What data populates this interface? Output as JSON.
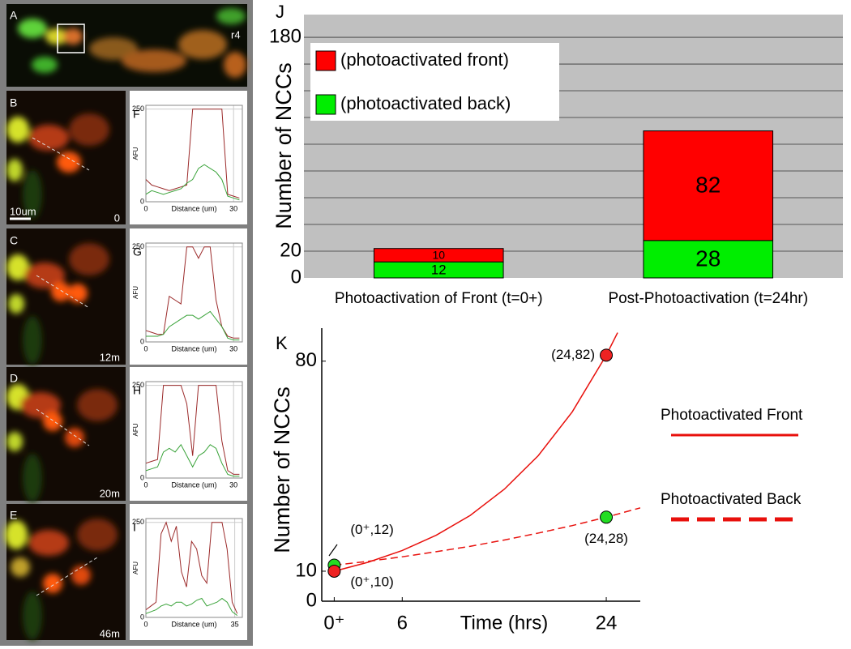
{
  "image_panels": [
    {
      "label": "A",
      "annotations": [
        "r4"
      ]
    },
    {
      "label": "B",
      "annotations": [
        "10um",
        "0"
      ]
    },
    {
      "label": "C",
      "annotations": [
        "12m"
      ]
    },
    {
      "label": "D",
      "annotations": [
        "20m"
      ]
    },
    {
      "label": "E",
      "annotations": [
        "46m"
      ]
    }
  ],
  "chart_data": [
    {
      "type": "line",
      "label": "F",
      "x": [
        0,
        2,
        4,
        6,
        8,
        10,
        12,
        14,
        16,
        18,
        20,
        22,
        24,
        26,
        28,
        30,
        32
      ],
      "series": [
        {
          "color": "#9b2a2a",
          "values": [
            60,
            45,
            40,
            35,
            30,
            35,
            40,
            45,
            250,
            250,
            250,
            250,
            250,
            250,
            20,
            15,
            10
          ]
        },
        {
          "color": "#3aa33a",
          "values": [
            20,
            30,
            25,
            20,
            25,
            30,
            35,
            50,
            60,
            90,
            100,
            90,
            80,
            60,
            15,
            10,
            5
          ]
        }
      ],
      "xlim": [
        0,
        33
      ],
      "xticks": [
        0,
        30
      ],
      "ylim": [
        0,
        260
      ],
      "yticks": [
        0,
        250
      ],
      "xlabel": "Distance (um)",
      "ylabel": "AFU",
      "grid": true
    },
    {
      "type": "line",
      "label": "G",
      "x": [
        0,
        2,
        4,
        6,
        8,
        10,
        12,
        14,
        16,
        18,
        20,
        22,
        24,
        26,
        28,
        30,
        32
      ],
      "series": [
        {
          "color": "#9b2a2a",
          "values": [
            30,
            25,
            20,
            20,
            120,
            110,
            100,
            250,
            250,
            220,
            250,
            250,
            110,
            40,
            15,
            10,
            10
          ]
        },
        {
          "color": "#3aa33a",
          "values": [
            15,
            15,
            15,
            20,
            40,
            50,
            60,
            70,
            70,
            60,
            70,
            80,
            60,
            40,
            10,
            5,
            5
          ]
        }
      ],
      "xlim": [
        0,
        33
      ],
      "xticks": [
        0,
        30
      ],
      "ylim": [
        0,
        260
      ],
      "yticks": [
        0,
        250
      ],
      "xlabel": "Distance (um)",
      "ylabel": "AFU",
      "grid": true
    },
    {
      "type": "line",
      "label": "H",
      "x": [
        0,
        2,
        4,
        6,
        8,
        10,
        12,
        14,
        16,
        18,
        20,
        22,
        24,
        26,
        28,
        30,
        32
      ],
      "series": [
        {
          "color": "#9b2a2a",
          "values": [
            40,
            45,
            50,
            250,
            250,
            250,
            250,
            200,
            60,
            250,
            250,
            250,
            250,
            100,
            20,
            10,
            10
          ]
        },
        {
          "color": "#3aa33a",
          "values": [
            20,
            25,
            30,
            70,
            80,
            70,
            90,
            60,
            30,
            60,
            70,
            90,
            80,
            40,
            10,
            5,
            5
          ]
        }
      ],
      "xlim": [
        0,
        33
      ],
      "xticks": [
        0,
        30
      ],
      "ylim": [
        0,
        260
      ],
      "yticks": [
        0,
        250
      ],
      "xlabel": "Distance (um)",
      "ylabel": "AFU",
      "grid": true
    },
    {
      "type": "line",
      "label": "I",
      "x": [
        0,
        2,
        4,
        6,
        8,
        10,
        12,
        14,
        16,
        18,
        20,
        22,
        24,
        26,
        28,
        30,
        32,
        34,
        36
      ],
      "series": [
        {
          "color": "#9b2a2a",
          "values": [
            20,
            30,
            40,
            220,
            250,
            200,
            240,
            120,
            80,
            200,
            180,
            110,
            90,
            250,
            250,
            250,
            180,
            40,
            10
          ]
        },
        {
          "color": "#3aa33a",
          "values": [
            10,
            15,
            20,
            30,
            35,
            30,
            40,
            40,
            30,
            35,
            45,
            50,
            30,
            35,
            40,
            50,
            40,
            15,
            5
          ]
        }
      ],
      "xlim": [
        0,
        38
      ],
      "xticks": [
        0,
        35
      ],
      "ylim": [
        0,
        260
      ],
      "yticks": [
        0,
        250
      ],
      "xlabel": "Distance (um)",
      "ylabel": "AFU",
      "grid": true
    },
    {
      "type": "stacked_bar",
      "label": "J",
      "categories": [
        "Photoactivation of Front (t=0+)",
        "Post-Photoactivation (t=24hr)"
      ],
      "series": [
        {
          "name": "(photoactivated back)",
          "color": "#00ee00",
          "values": [
            12,
            28
          ]
        },
        {
          "name": "(photoactivated front)",
          "color": "#ff0000",
          "values": [
            10,
            82
          ]
        }
      ],
      "ylim": [
        0,
        197
      ],
      "yticks": [
        0,
        20,
        180
      ],
      "grid_lines": [
        20,
        40,
        60,
        80,
        100,
        120,
        140,
        160,
        180
      ],
      "ylabel": "Number of NCCs",
      "legend": "upper left"
    },
    {
      "type": "curve",
      "label": "K",
      "series": [
        {
          "name": "Photoactivated Front",
          "color": "#e8100c",
          "dash": false,
          "x": [
            0,
            3,
            6,
            9,
            12,
            15,
            18,
            21,
            24,
            25
          ],
          "values": [
            10,
            13.0,
            16.9,
            22.0,
            28.6,
            37.3,
            48.5,
            63.1,
            82,
            89.5
          ]
        },
        {
          "name": "Photoactivated Back",
          "color": "#e8100c",
          "dash": true,
          "x": [
            0,
            3,
            6,
            9,
            12,
            15,
            18,
            21,
            24,
            27
          ],
          "values": [
            12,
            13.3,
            14.8,
            16.5,
            18.3,
            20.4,
            22.7,
            25.2,
            28,
            31.1
          ]
        }
      ],
      "points": [
        {
          "x": 0,
          "y": 12,
          "color": "#22dd22",
          "label": "(0⁺,12)"
        },
        {
          "x": 0,
          "y": 10,
          "color": "#ee2222",
          "label": "(0⁺,10)"
        },
        {
          "x": 24,
          "y": 82,
          "color": "#ee2222",
          "label": "(24,82)"
        },
        {
          "x": 24,
          "y": 28,
          "color": "#22dd22",
          "label": "(24,28)"
        }
      ],
      "xlim": [
        -1.1,
        27
      ],
      "xticks": [
        {
          "value": 0,
          "label": "0⁺"
        },
        6,
        24
      ],
      "ylim": [
        0,
        91
      ],
      "yticks": [
        0,
        10,
        80
      ],
      "xlabel": "Time (hrs)",
      "ylabel": "Number of NCCs",
      "legend": "right"
    }
  ]
}
